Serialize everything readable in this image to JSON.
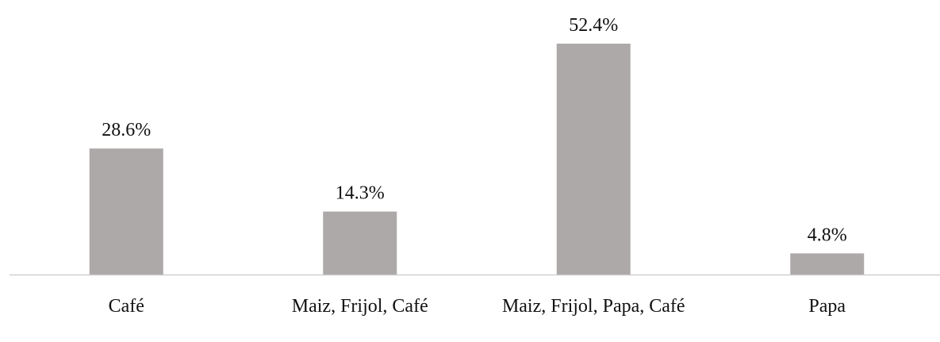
{
  "chart_data": {
    "type": "bar",
    "categories": [
      "Café",
      "Maiz, Frijol, Café",
      "Maiz, Frijol, Papa, Café",
      "Papa"
    ],
    "values": [
      28.6,
      14.3,
      52.4,
      4.8
    ],
    "value_labels": [
      "28.6%",
      "14.3%",
      "52.4%",
      "4.8%"
    ],
    "color": "#ada9a8"
  }
}
